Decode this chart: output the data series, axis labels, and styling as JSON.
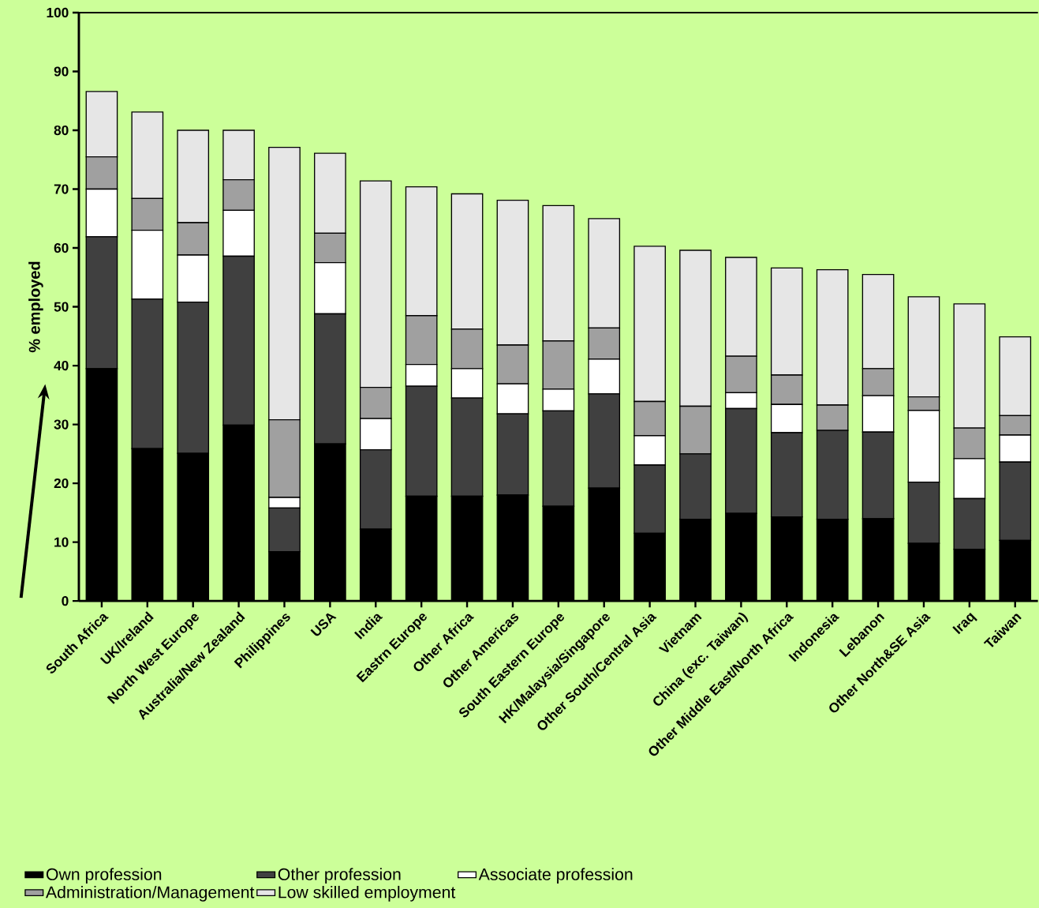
{
  "chart_data": {
    "type": "bar",
    "stacked": true,
    "ylabel": "% employed",
    "categories": [
      "South Africa",
      "UK/Ireland",
      "North West Europe",
      "Australia/New Zealand",
      "Philippines",
      "USA",
      "India",
      "Eastrn Europe",
      "Other Africa",
      "Other Americas",
      "South Eastern Europe",
      "HK/Malaysia/Singapore",
      "Other South/Central Asia",
      "Vietnam",
      "China (exc. Taiwan)",
      "Other Middle East/North Africa",
      "Indonesia",
      "Lebanon",
      "Other North&SE Asia",
      "Iraq",
      "Taiwan"
    ],
    "series": [
      {
        "name": "Own profession",
        "color": "#000000",
        "values": [
          39.5,
          25.9,
          25.1,
          29.9,
          8.4,
          26.7,
          12.2,
          17.8,
          17.8,
          18.0,
          16.1,
          19.2,
          11.5,
          13.9,
          14.9,
          14.3,
          13.9,
          14.0,
          9.8,
          8.8,
          10.3
        ]
      },
      {
        "name": "Other profession",
        "color": "#404040",
        "values": [
          22.4,
          25.4,
          25.7,
          28.7,
          7.4,
          22.1,
          13.5,
          18.7,
          16.7,
          13.8,
          16.2,
          16.0,
          11.6,
          11.1,
          17.8,
          14.3,
          15.1,
          14.7,
          10.4,
          8.6,
          13.3
        ]
      },
      {
        "name": "Associate profession",
        "color": "#ffffff",
        "values": [
          8.1,
          11.7,
          8.0,
          7.8,
          1.8,
          8.7,
          5.3,
          3.7,
          5.0,
          5.1,
          3.7,
          5.9,
          5.0,
          0,
          2.7,
          4.8,
          0,
          6.2,
          12.2,
          6.8,
          4.6
        ]
      },
      {
        "name": "Administration/Management",
        "color": "#a0a0a0",
        "values": [
          5.5,
          5.4,
          5.5,
          5.2,
          13.2,
          5.0,
          5.3,
          8.3,
          6.7,
          6.6,
          8.2,
          5.3,
          5.8,
          8.1,
          6.2,
          5.0,
          4.3,
          4.6,
          2.3,
          5.2,
          3.3
        ]
      },
      {
        "name": "Low skilled employment",
        "color": "#e6e6e6",
        "values": [
          11.1,
          14.7,
          15.7,
          8.4,
          46.3,
          13.6,
          35.1,
          21.9,
          23.0,
          24.6,
          23.0,
          18.6,
          26.4,
          26.5,
          16.8,
          18.2,
          23.0,
          16.0,
          17.0,
          21.1,
          13.4
        ]
      }
    ],
    "ylim": [
      0,
      100
    ],
    "yticks": [
      0,
      10,
      20,
      30,
      40,
      50,
      60,
      70,
      80,
      90,
      100
    ],
    "legend": "bottom"
  }
}
